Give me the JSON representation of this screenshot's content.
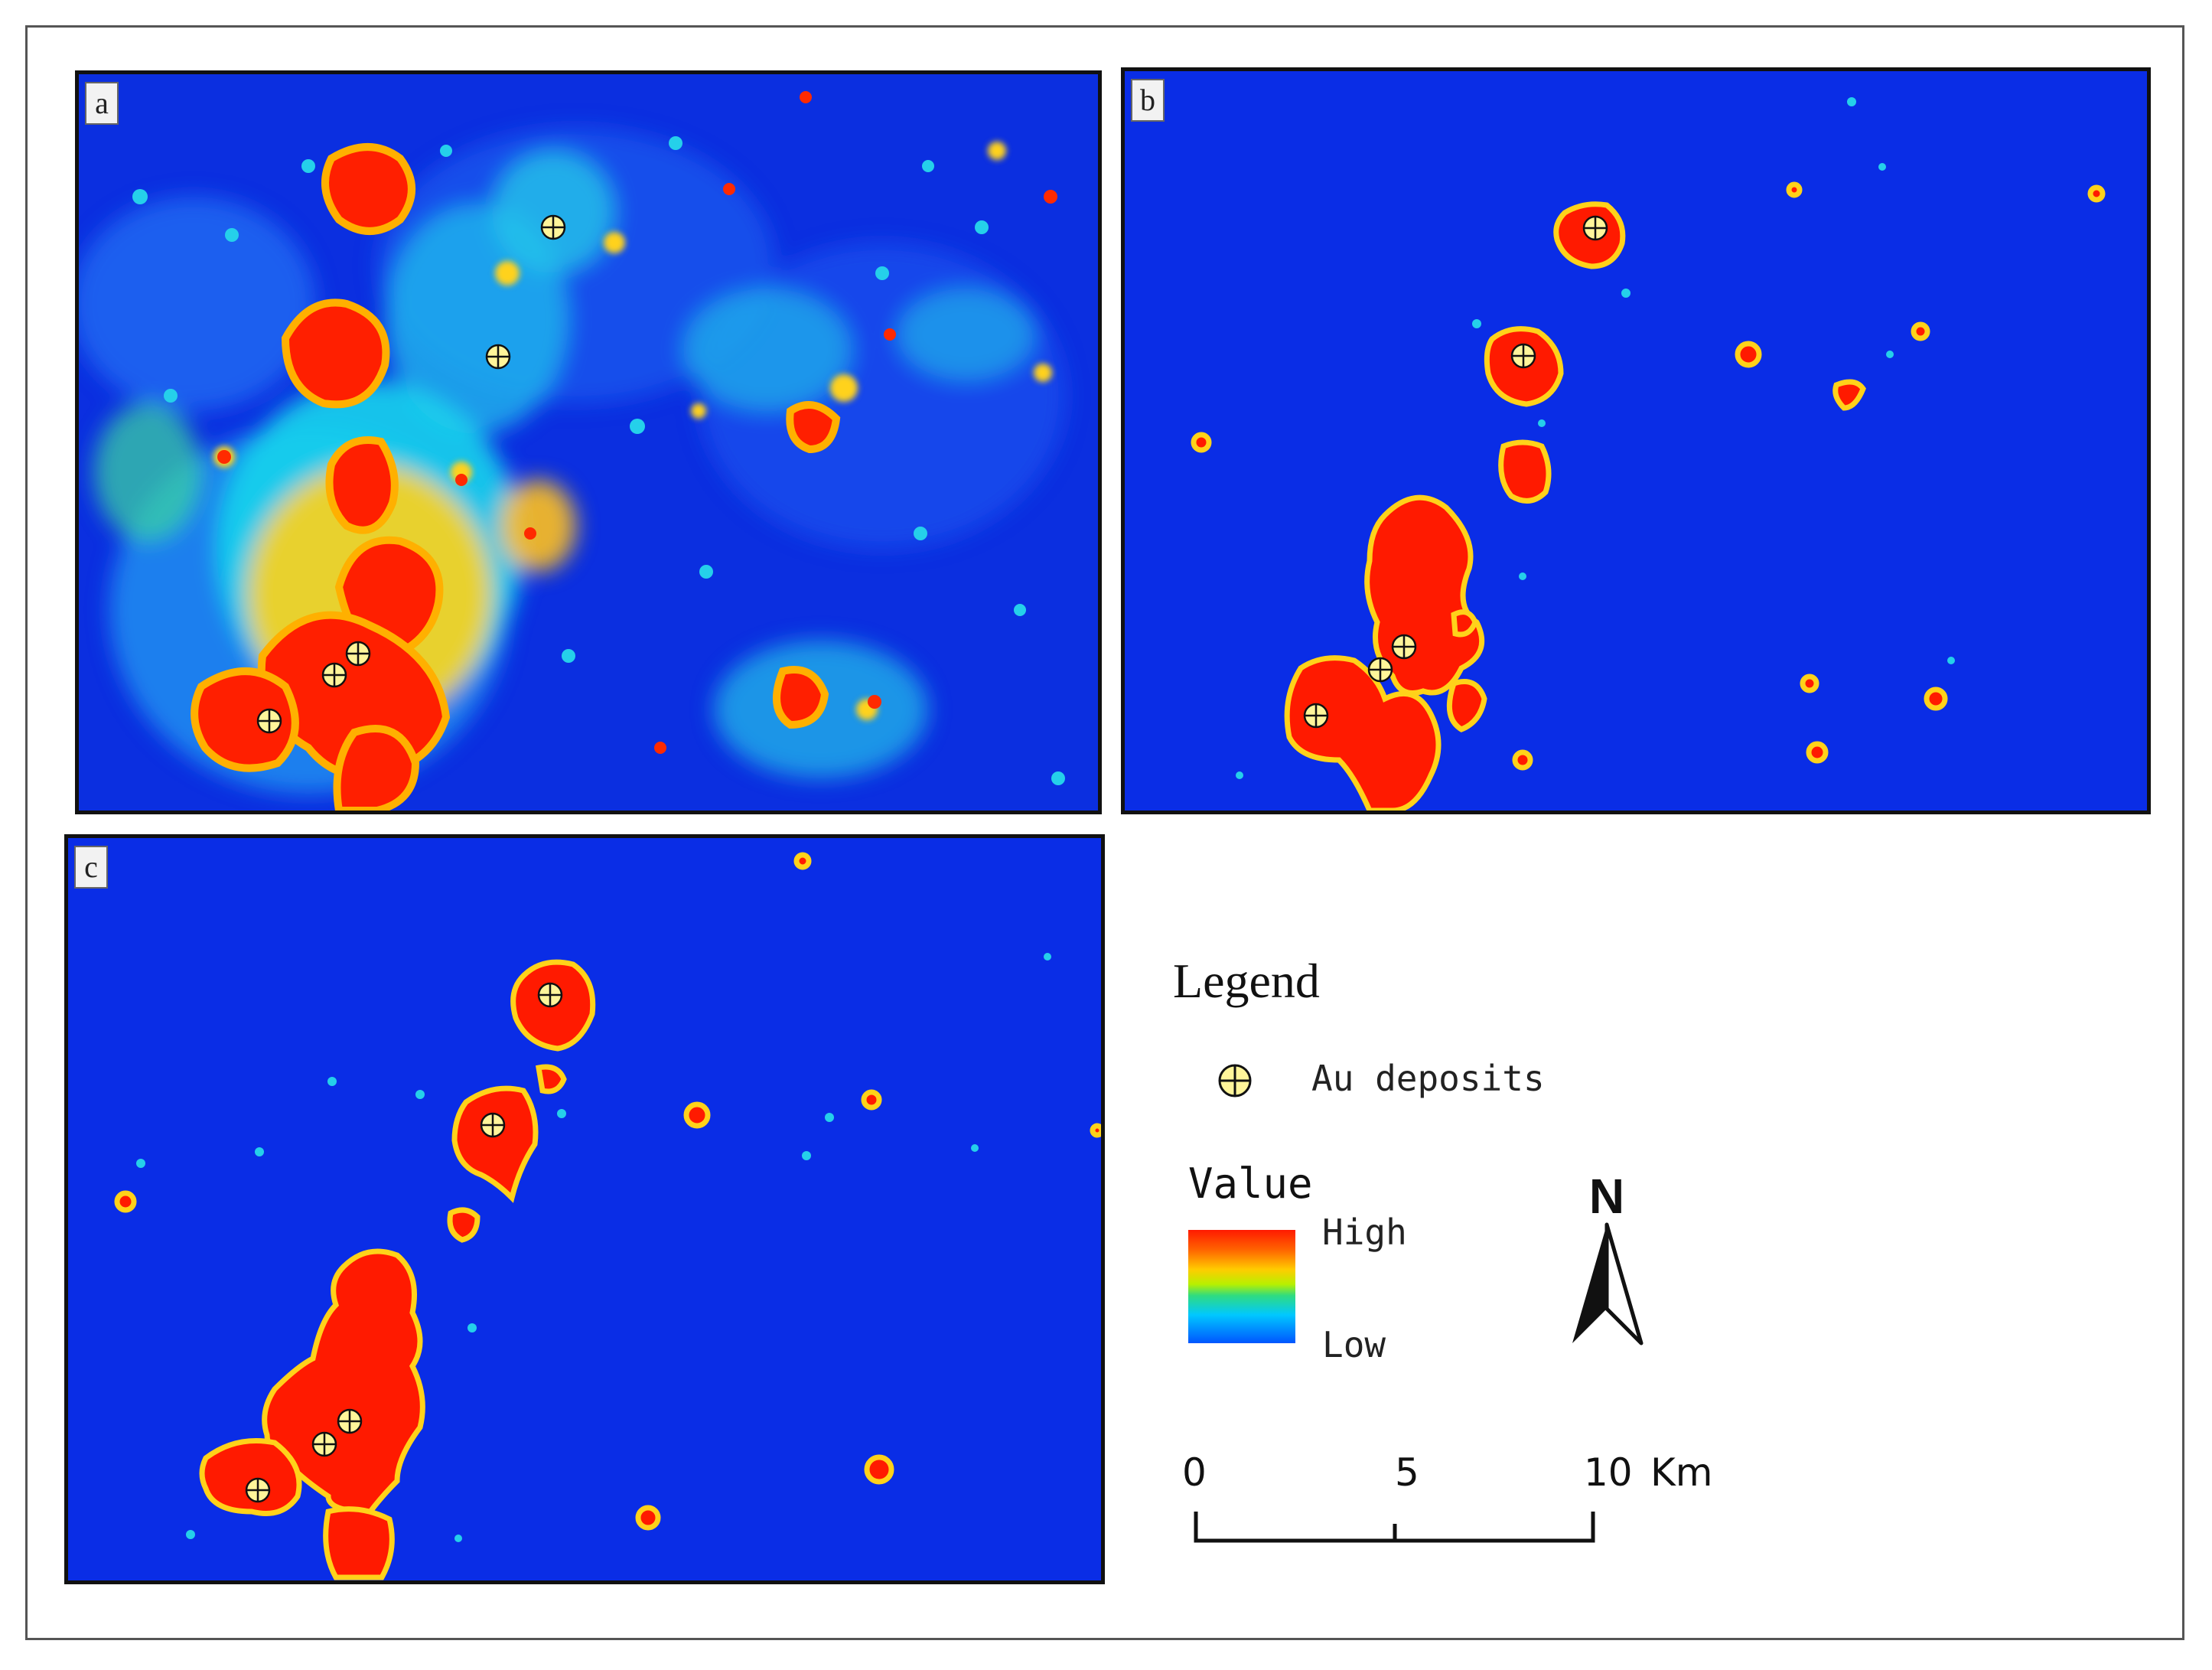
{
  "panels": [
    {
      "id": "a",
      "label": "a"
    },
    {
      "id": "b",
      "label": "b"
    },
    {
      "id": "c",
      "label": "c"
    }
  ],
  "legend": {
    "title": "Legend",
    "au_label": "Au deposits",
    "value_title": "Value",
    "high": "High",
    "low": "Low",
    "north": "N",
    "scale_ticks": [
      "0",
      "5",
      "10"
    ],
    "scale_unit": "Km"
  },
  "colors": {
    "background_low": "#0a2de6",
    "high": "#ff1a00",
    "mid": "#ffcc00",
    "cyan": "#19d4ec",
    "deposit_fill": "#fff59a"
  }
}
